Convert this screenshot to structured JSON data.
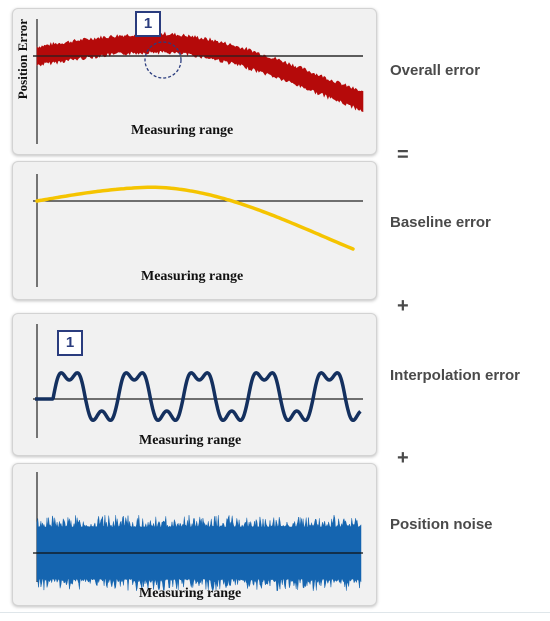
{
  "panels": [
    {
      "x_label": "Measuring range",
      "y_label": "Position Error",
      "side_label": "Overall error",
      "operator": "="
    },
    {
      "x_label": "Measuring range",
      "side_label": "Baseline error",
      "operator": "+"
    },
    {
      "x_label": "Measuring range",
      "side_label": "Interpolation error",
      "operator": "+"
    },
    {
      "x_label": "Measuring range",
      "side_label": "Position noise"
    }
  ],
  "marker_label": "1",
  "colors": {
    "overall": "#b50a0a",
    "baseline": "#f5c400",
    "interpolation": "#14305f",
    "noise": "#1565b0",
    "marker": "#2a3c7e",
    "panel_bg": "#f1f1f1"
  }
}
